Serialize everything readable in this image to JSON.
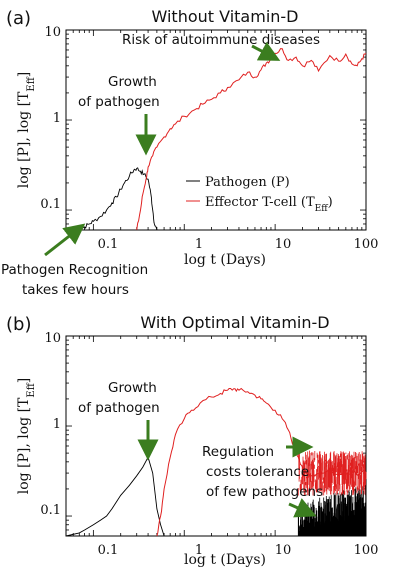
{
  "chart_data": [
    {
      "type": "line",
      "panel_label": "(a)",
      "title": "Without Vitamin-D",
      "xlabel": "log t (Days)",
      "ylabel": "log [P], log [T_Eff]",
      "xscale": "log",
      "yscale": "log",
      "xlim": [
        0.05,
        100
      ],
      "ylim": [
        0.06,
        10
      ],
      "x_ticks": [
        "0.1",
        "1",
        "10",
        "100"
      ],
      "y_ticks": [
        "0.1",
        "1",
        "10"
      ],
      "legend": {
        "placement": "bottom-right",
        "entries": [
          {
            "label": "Pathogen (P)",
            "color": "#000000"
          },
          {
            "label": "Effector T-cell (T",
            "sub": "Eff",
            "suffix": ")",
            "color": "#e02020"
          }
        ]
      },
      "series": [
        {
          "name": "Pathogen (P)",
          "color": "#000000",
          "x": [
            0.05,
            0.07,
            0.08,
            0.09,
            0.1,
            0.12,
            0.14,
            0.16,
            0.18,
            0.2,
            0.22,
            0.25,
            0.28,
            0.3,
            0.33,
            0.36,
            0.4,
            0.43,
            0.45,
            0.47,
            0.5
          ],
          "y": [
            0.06,
            0.06,
            0.065,
            0.07,
            0.075,
            0.085,
            0.1,
            0.12,
            0.14,
            0.17,
            0.2,
            0.24,
            0.28,
            0.29,
            0.27,
            0.25,
            0.22,
            0.15,
            0.1,
            0.07,
            0.06
          ]
        },
        {
          "name": "Effector T-cell (T_Eff)",
          "color": "#e02020",
          "x": [
            0.3,
            0.33,
            0.35,
            0.38,
            0.4,
            0.45,
            0.5,
            0.6,
            0.7,
            0.8,
            1,
            1.3,
            1.6,
            2,
            2.5,
            3,
            4,
            5,
            6,
            7,
            8,
            9,
            10,
            12,
            14,
            17,
            20,
            25,
            30,
            40,
            50,
            60,
            70,
            80,
            90,
            100
          ],
          "y": [
            0.06,
            0.1,
            0.15,
            0.22,
            0.3,
            0.4,
            0.5,
            0.65,
            0.8,
            0.9,
            1.1,
            1.3,
            1.5,
            1.7,
            2.0,
            2.3,
            2.8,
            3.4,
            3.0,
            3.6,
            4.3,
            4.8,
            5.5,
            6.2,
            4.6,
            5.0,
            4.0,
            4.6,
            3.5,
            5.2,
            4.5,
            5.4,
            4.2,
            4.0,
            4.8,
            5.5
          ]
        }
      ],
      "annotations": [
        {
          "id": "risk",
          "text": "Risk of autoimmune  diseases"
        },
        {
          "id": "growth",
          "lines": [
            "Growth",
            "of pathogen"
          ]
        },
        {
          "id": "recognition",
          "lines": [
            "Pathogen Recognition",
            "takes few hours"
          ]
        }
      ]
    },
    {
      "type": "line",
      "panel_label": "(b)",
      "title": "With Optimal Vitamin-D",
      "xlabel": "log t (Days)",
      "ylabel": "log [P], log [T_Eff]",
      "xscale": "log",
      "yscale": "log",
      "xlim": [
        0.05,
        100
      ],
      "ylim": [
        0.06,
        10
      ],
      "x_ticks": [
        "0.1",
        "1",
        "10",
        "100"
      ],
      "y_ticks": [
        "0.1",
        "1",
        "10"
      ],
      "series": [
        {
          "name": "Pathogen (P)",
          "color": "#000000",
          "x": [
            0.05,
            0.07,
            0.08,
            0.1,
            0.12,
            0.14,
            0.16,
            0.2,
            0.25,
            0.3,
            0.35,
            0.4,
            0.45,
            0.5,
            0.55,
            0.6,
            20,
            25,
            30,
            40,
            50,
            60,
            70,
            80,
            90,
            100
          ],
          "y": [
            0.06,
            0.065,
            0.07,
            0.08,
            0.09,
            0.1,
            0.12,
            0.17,
            0.22,
            0.28,
            0.35,
            0.45,
            0.3,
            0.12,
            0.08,
            0.06,
            0.06,
            0.07,
            0.08,
            0.085,
            0.09,
            0.095,
            0.09,
            0.1,
            0.095,
            0.1
          ]
        },
        {
          "name": "Effector T-cell (T_Eff)",
          "color": "#e02020",
          "x": [
            0.5,
            0.55,
            0.6,
            0.7,
            0.8,
            1,
            1.2,
            1.5,
            2,
            2.5,
            3,
            3.5,
            4,
            5,
            6,
            7,
            8,
            10,
            12,
            14,
            16,
            18,
            20,
            22,
            25,
            30,
            40,
            50,
            60,
            70,
            80,
            90,
            100
          ],
          "y": [
            0.06,
            0.1,
            0.2,
            0.45,
            0.8,
            1.2,
            1.5,
            1.8,
            2.1,
            2.3,
            2.5,
            2.6,
            2.5,
            2.4,
            2.2,
            2.0,
            1.8,
            1.5,
            1.2,
            0.9,
            0.6,
            0.45,
            0.35,
            0.3,
            0.28,
            0.3,
            0.32,
            0.28,
            0.3,
            0.33,
            0.29,
            0.31,
            0.3
          ]
        }
      ],
      "annotations": [
        {
          "id": "growth",
          "lines": [
            "Growth",
            "of pathogen"
          ]
        },
        {
          "id": "regulation",
          "lines": [
            "Regulation",
            "costs tolerance",
            "of few pathogens"
          ]
        }
      ]
    }
  ]
}
